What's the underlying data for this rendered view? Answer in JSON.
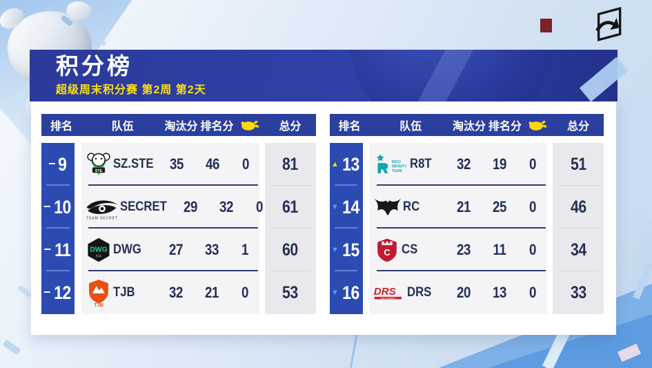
{
  "page": {
    "title": "积分榜",
    "subtitle": "超级周末积分赛 第2周 第2天"
  },
  "columns": {
    "rank": "排名",
    "team": "队伍",
    "elim": "淘汰分",
    "placement": "排名分",
    "total": "总分"
  },
  "icons": {
    "wwcd_column": "chicken-icon",
    "brand": "pel-swoosh-logo",
    "trend_up": "triangle-up",
    "trend_down": "triangle-down",
    "trend_same": "dash"
  },
  "trend_glyphs": {
    "up": "▲",
    "down": "▼",
    "same": "−"
  },
  "colors": {
    "banner_blue": "#2c3a9a",
    "header_blue": "#2b3f9e",
    "rank_blue": "#2b4bb3",
    "accent_yellow": "#ffd900",
    "navy_text": "#252e56",
    "trend_down_blue": "#53a4e6",
    "row_bg": "#f4f4f6",
    "total_col_bg": "#e9e9ed"
  },
  "tables": [
    {
      "id": "left",
      "rows": [
        {
          "rank": "9",
          "trend": "same",
          "logo": "szste",
          "team": "SZ.STE",
          "elim": "35",
          "placement": "46",
          "chickens": "0",
          "total": "81"
        },
        {
          "rank": "10",
          "trend": "same",
          "logo": "secret",
          "team": "SECRET",
          "elim": "29",
          "placement": "32",
          "chickens": "0",
          "total": "61"
        },
        {
          "rank": "11",
          "trend": "same",
          "logo": "dwg",
          "team": "DWG",
          "elim": "27",
          "placement": "33",
          "chickens": "1",
          "total": "60"
        },
        {
          "rank": "12",
          "trend": "same",
          "logo": "tjb",
          "team": "TJB",
          "elim": "32",
          "placement": "21",
          "chickens": "0",
          "total": "53"
        }
      ]
    },
    {
      "id": "right",
      "rows": [
        {
          "rank": "13",
          "trend": "up",
          "logo": "r8t",
          "team": "R8T",
          "elim": "32",
          "placement": "19",
          "chickens": "0",
          "total": "51"
        },
        {
          "rank": "14",
          "trend": "down",
          "logo": "rc",
          "team": "RC",
          "elim": "21",
          "placement": "25",
          "chickens": "0",
          "total": "46"
        },
        {
          "rank": "15",
          "trend": "down",
          "logo": "cs",
          "team": "CS",
          "elim": "23",
          "placement": "11",
          "chickens": "0",
          "total": "34"
        },
        {
          "rank": "16",
          "trend": "down",
          "logo": "drs",
          "team": "DRS",
          "elim": "20",
          "placement": "13",
          "chickens": "0",
          "total": "33"
        }
      ]
    }
  ]
}
